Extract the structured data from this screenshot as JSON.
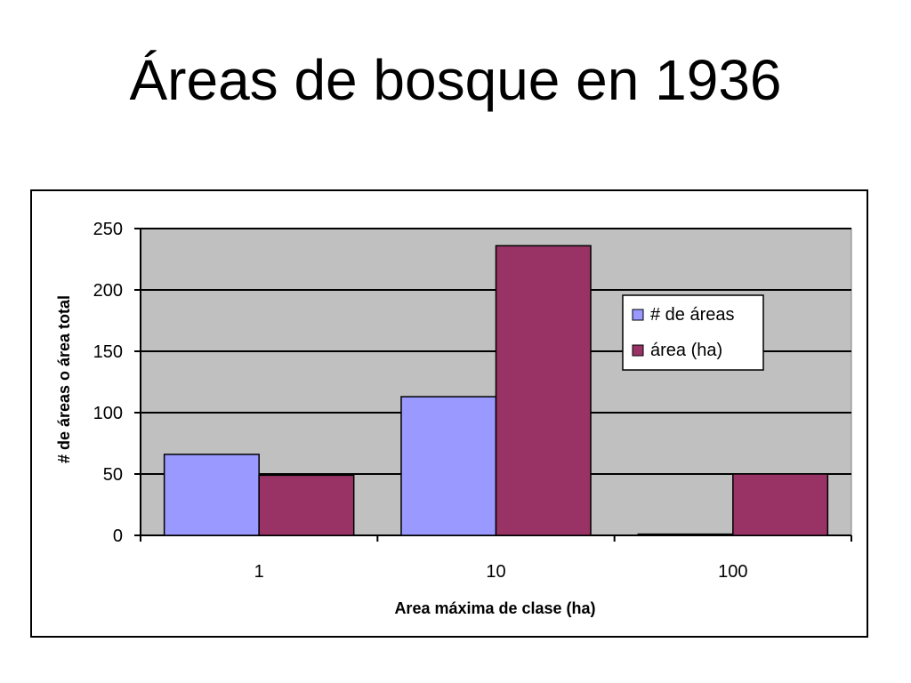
{
  "slide": {
    "title": "Áreas de bosque en 1936"
  },
  "chart_data": {
    "type": "bar",
    "categories": [
      "1",
      "10",
      "100"
    ],
    "series": [
      {
        "name": "# de áreas",
        "values": [
          66,
          113,
          1
        ],
        "color": "#9999ff"
      },
      {
        "name": "área (ha)",
        "values": [
          49,
          236,
          50
        ],
        "color": "#993366"
      }
    ],
    "xlabel": "Area máxima de clase (ha)",
    "ylabel": "# de áreas o área total",
    "ylim": [
      0,
      250
    ],
    "yticks": [
      0,
      50,
      100,
      150,
      200,
      250
    ],
    "grid": true,
    "plot_background": "#c0c0c0",
    "legend_position": "right"
  }
}
